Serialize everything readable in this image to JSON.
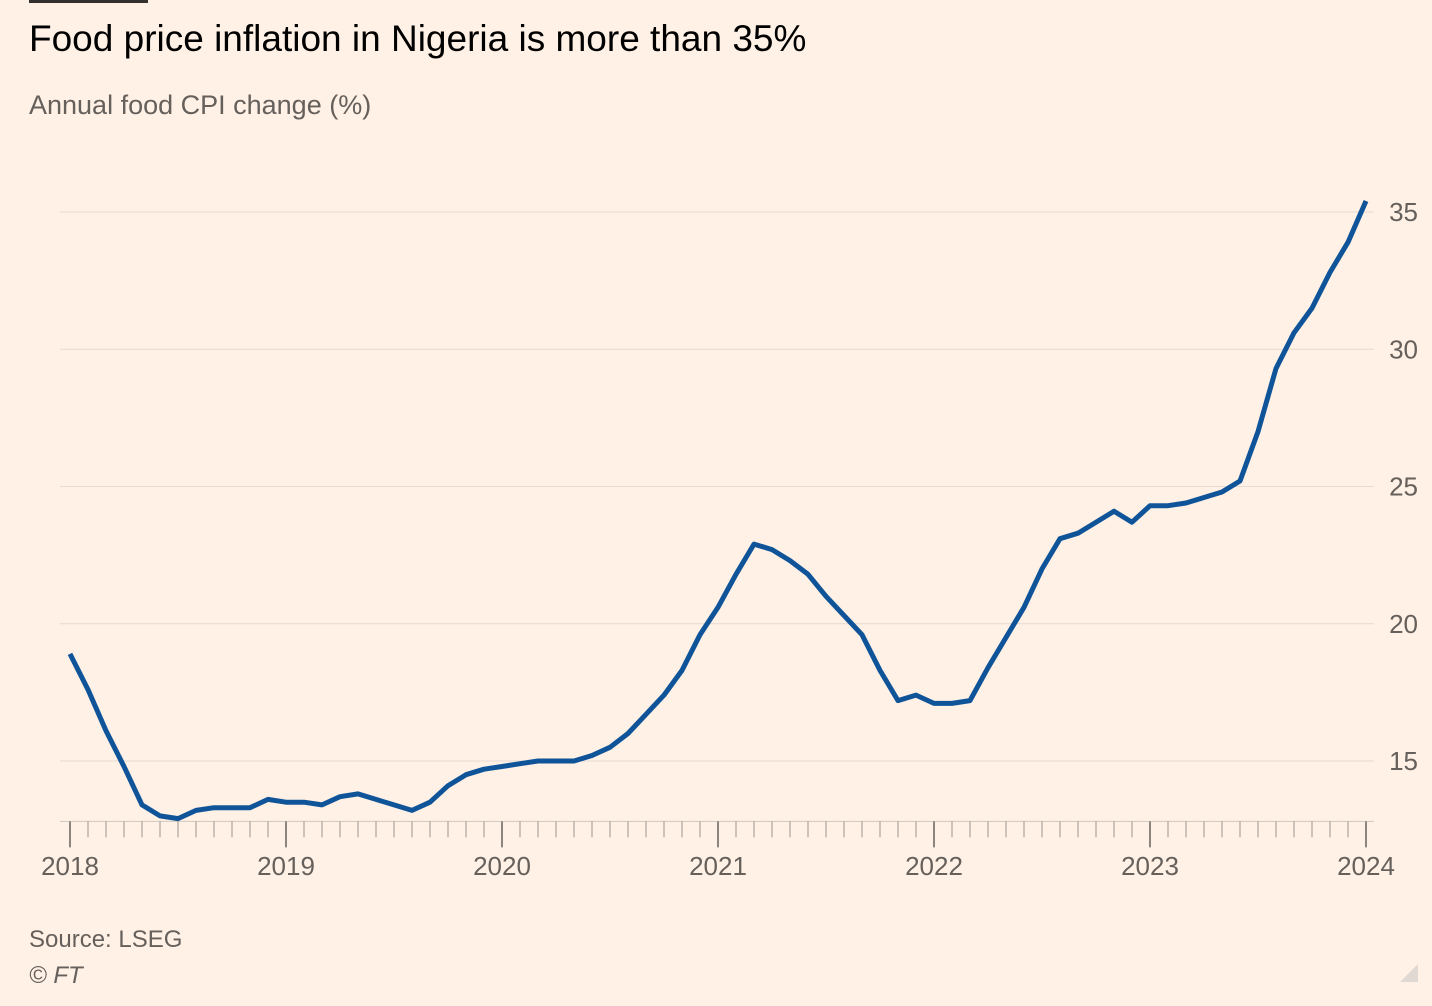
{
  "header": {
    "title": "Food price inflation in Nigeria is more than 35%",
    "subtitle": "Annual food CPI change (%)"
  },
  "footer": {
    "source": "Source: LSEG",
    "copyright": "© FT"
  },
  "colors": {
    "background": "#FFF1E5",
    "line": "#0F5499",
    "gridline": "#E6DBD2",
    "axis_text": "#66605C",
    "title_text": "#000000",
    "top_rule": "#33302E"
  },
  "chart_data": {
    "type": "line",
    "title": "Food price inflation in Nigeria is more than 35%",
    "subtitle": "Annual food CPI change (%)",
    "xlabel": "",
    "ylabel": "",
    "xlim": [
      "2018-01",
      "2024-01"
    ],
    "ylim": [
      12.8,
      36
    ],
    "x_ticks": [
      "2018",
      "2019",
      "2020",
      "2021",
      "2022",
      "2023",
      "2024"
    ],
    "y_ticks": [
      15,
      20,
      25,
      30,
      35
    ],
    "y_axis_position": "right",
    "grid": "horizontal",
    "legend": "none",
    "series": [
      {
        "color": "#0F5499",
        "x": [
          "2018-01",
          "2018-02",
          "2018-03",
          "2018-04",
          "2018-05",
          "2018-06",
          "2018-07",
          "2018-08",
          "2018-09",
          "2018-10",
          "2018-11",
          "2018-12",
          "2019-01",
          "2019-02",
          "2019-03",
          "2019-04",
          "2019-05",
          "2019-06",
          "2019-07",
          "2019-08",
          "2019-09",
          "2019-10",
          "2019-11",
          "2019-12",
          "2020-01",
          "2020-02",
          "2020-03",
          "2020-04",
          "2020-05",
          "2020-06",
          "2020-07",
          "2020-08",
          "2020-09",
          "2020-10",
          "2020-11",
          "2020-12",
          "2021-01",
          "2021-02",
          "2021-03",
          "2021-04",
          "2021-05",
          "2021-06",
          "2021-07",
          "2021-08",
          "2021-09",
          "2021-10",
          "2021-11",
          "2021-12",
          "2022-01",
          "2022-02",
          "2022-03",
          "2022-04",
          "2022-05",
          "2022-06",
          "2022-07",
          "2022-08",
          "2022-09",
          "2022-10",
          "2022-11",
          "2022-12",
          "2023-01",
          "2023-02",
          "2023-03",
          "2023-04",
          "2023-05",
          "2023-06",
          "2023-07",
          "2023-08",
          "2023-09",
          "2023-10",
          "2023-11",
          "2023-12",
          "2024-01"
        ],
        "values": [
          18.9,
          17.6,
          16.1,
          14.8,
          13.4,
          13.0,
          12.9,
          13.2,
          13.3,
          13.3,
          13.3,
          13.6,
          13.5,
          13.5,
          13.4,
          13.7,
          13.8,
          13.6,
          13.4,
          13.2,
          13.5,
          14.1,
          14.5,
          14.7,
          14.8,
          14.9,
          15.0,
          15.0,
          15.0,
          15.2,
          15.5,
          16.0,
          16.7,
          17.4,
          18.3,
          19.6,
          20.6,
          21.8,
          22.9,
          22.7,
          22.3,
          21.8,
          21.0,
          20.3,
          19.6,
          18.3,
          17.2,
          17.4,
          17.1,
          17.1,
          17.2,
          18.4,
          19.5,
          20.6,
          22.0,
          23.1,
          23.3,
          23.7,
          24.1,
          23.7,
          24.3,
          24.3,
          24.4,
          24.6,
          24.8,
          25.2,
          27.0,
          29.3,
          30.6,
          31.5,
          32.8,
          33.9,
          35.4
        ]
      }
    ]
  }
}
